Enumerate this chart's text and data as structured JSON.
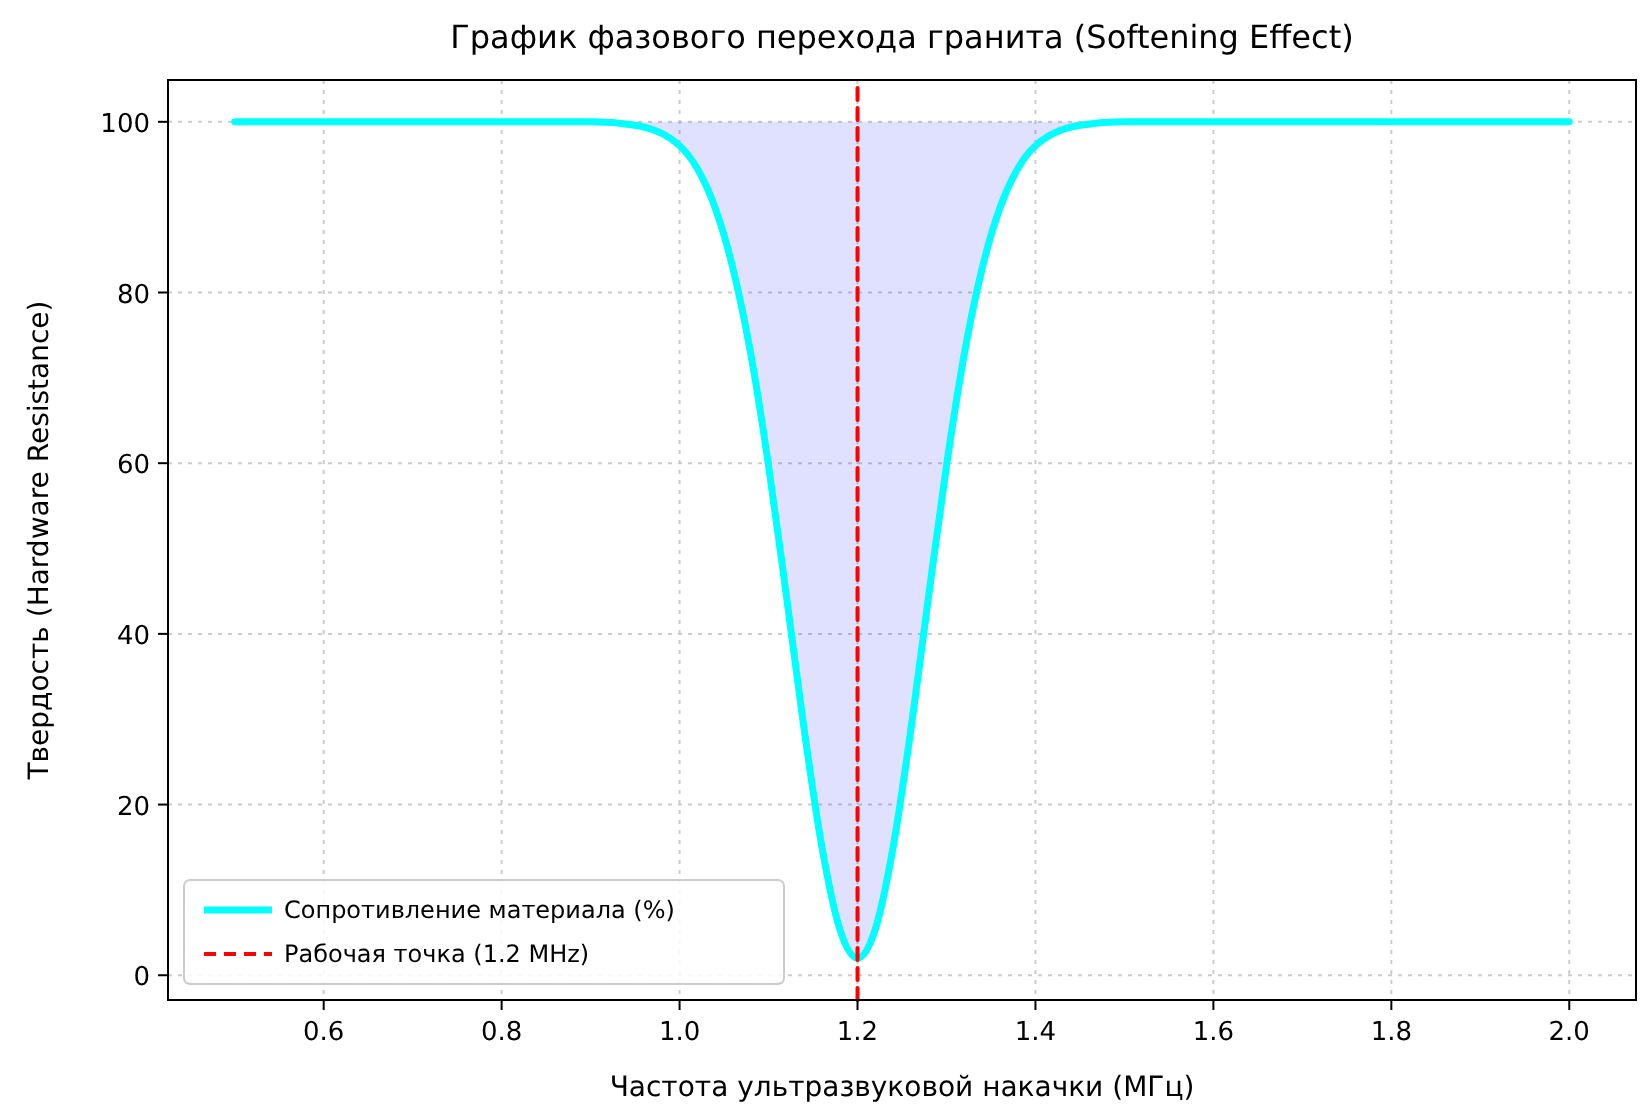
{
  "chart_data": {
    "type": "line",
    "title": "График фазового перехода гранита (Softening Effect)",
    "xlabel": "Частота ультразвуковой накачки (МГц)",
    "ylabel": "Твердость (Hardware Resistance)",
    "x": [
      0.5,
      0.7,
      0.9,
      0.95,
      1.0,
      1.02,
      1.04,
      1.06,
      1.08,
      1.1,
      1.12,
      1.14,
      1.16,
      1.18,
      1.2,
      1.22,
      1.24,
      1.26,
      1.28,
      1.3,
      1.32,
      1.34,
      1.36,
      1.38,
      1.4,
      1.45,
      1.5,
      1.7,
      2.0
    ],
    "series": [
      {
        "name": "Сопротивление материала (%)",
        "color": "#00ffff",
        "values": [
          100,
          100,
          100,
          99.6,
          97.2,
          94.5,
          89.9,
          82.8,
          72.8,
          59.7,
          44.5,
          28.8,
          15.0,
          5.4,
          2,
          5.4,
          15.0,
          28.8,
          44.5,
          59.7,
          72.8,
          82.8,
          89.9,
          94.5,
          97.2,
          99.6,
          100,
          100,
          100
        ],
        "lower": [
          100,
          100,
          100,
          99.6,
          97.2,
          94.5,
          89.9,
          82.8,
          72.8,
          59.7,
          44.5,
          28.8,
          15.0,
          5.4,
          2,
          5.4,
          15.0,
          28.8,
          44.5,
          59.7,
          72.8,
          82.8,
          89.9,
          94.5,
          97.2,
          99.6,
          100,
          100,
          100
        ],
        "upper": [
          100,
          100,
          100,
          100,
          100,
          100,
          100,
          100,
          100,
          100,
          100,
          100,
          100,
          100,
          100,
          100,
          100,
          100,
          100,
          100,
          100,
          100,
          100,
          100,
          100,
          100,
          100,
          100,
          100
        ]
      },
      {
        "name": "Рабочая точка (1.2 MHz)",
        "color": "#ff0000",
        "line_style": "dashed",
        "x": [
          1.2,
          1.2
        ],
        "values": [
          -2.9,
          104.9
        ]
      }
    ],
    "xlim": [
      0.425,
      2.075
    ],
    "xticks": [
      {
        "value": 0.6,
        "label": "0.6"
      },
      {
        "value": 0.8,
        "label": "0.8"
      },
      {
        "value": 1.0,
        "label": "1.0"
      },
      {
        "value": 1.2,
        "label": "1.2"
      },
      {
        "value": 1.4,
        "label": "1.4"
      },
      {
        "value": 1.6,
        "label": "1.6"
      },
      {
        "value": 1.8,
        "label": "1.8"
      },
      {
        "value": 2.0,
        "label": "2.0"
      }
    ],
    "ylim": [
      -2.9,
      104.9
    ],
    "yticks": [
      0,
      20,
      40,
      60,
      80,
      100
    ],
    "grid": true,
    "legend": "bottom left",
    "line_style": "solid",
    "marker": "none"
  }
}
